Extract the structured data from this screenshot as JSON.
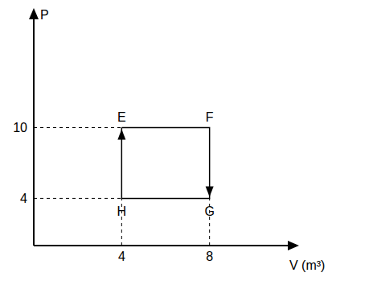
{
  "chart_data": {
    "type": "line",
    "x_label": "V (m³)",
    "y_label": "P",
    "x": [
      4,
      8,
      8,
      4,
      4
    ],
    "values": [
      10,
      10,
      4,
      4,
      10
    ],
    "point_labels": [
      "E",
      "F",
      "G",
      "H"
    ],
    "xlim": [
      0,
      12
    ],
    "ylim": [
      0,
      20
    ],
    "xticks": [
      4,
      8
    ],
    "yticks": [
      4,
      10
    ],
    "color": "#000000",
    "line_style": "solid",
    "marker": "arrow",
    "grid": false
  }
}
